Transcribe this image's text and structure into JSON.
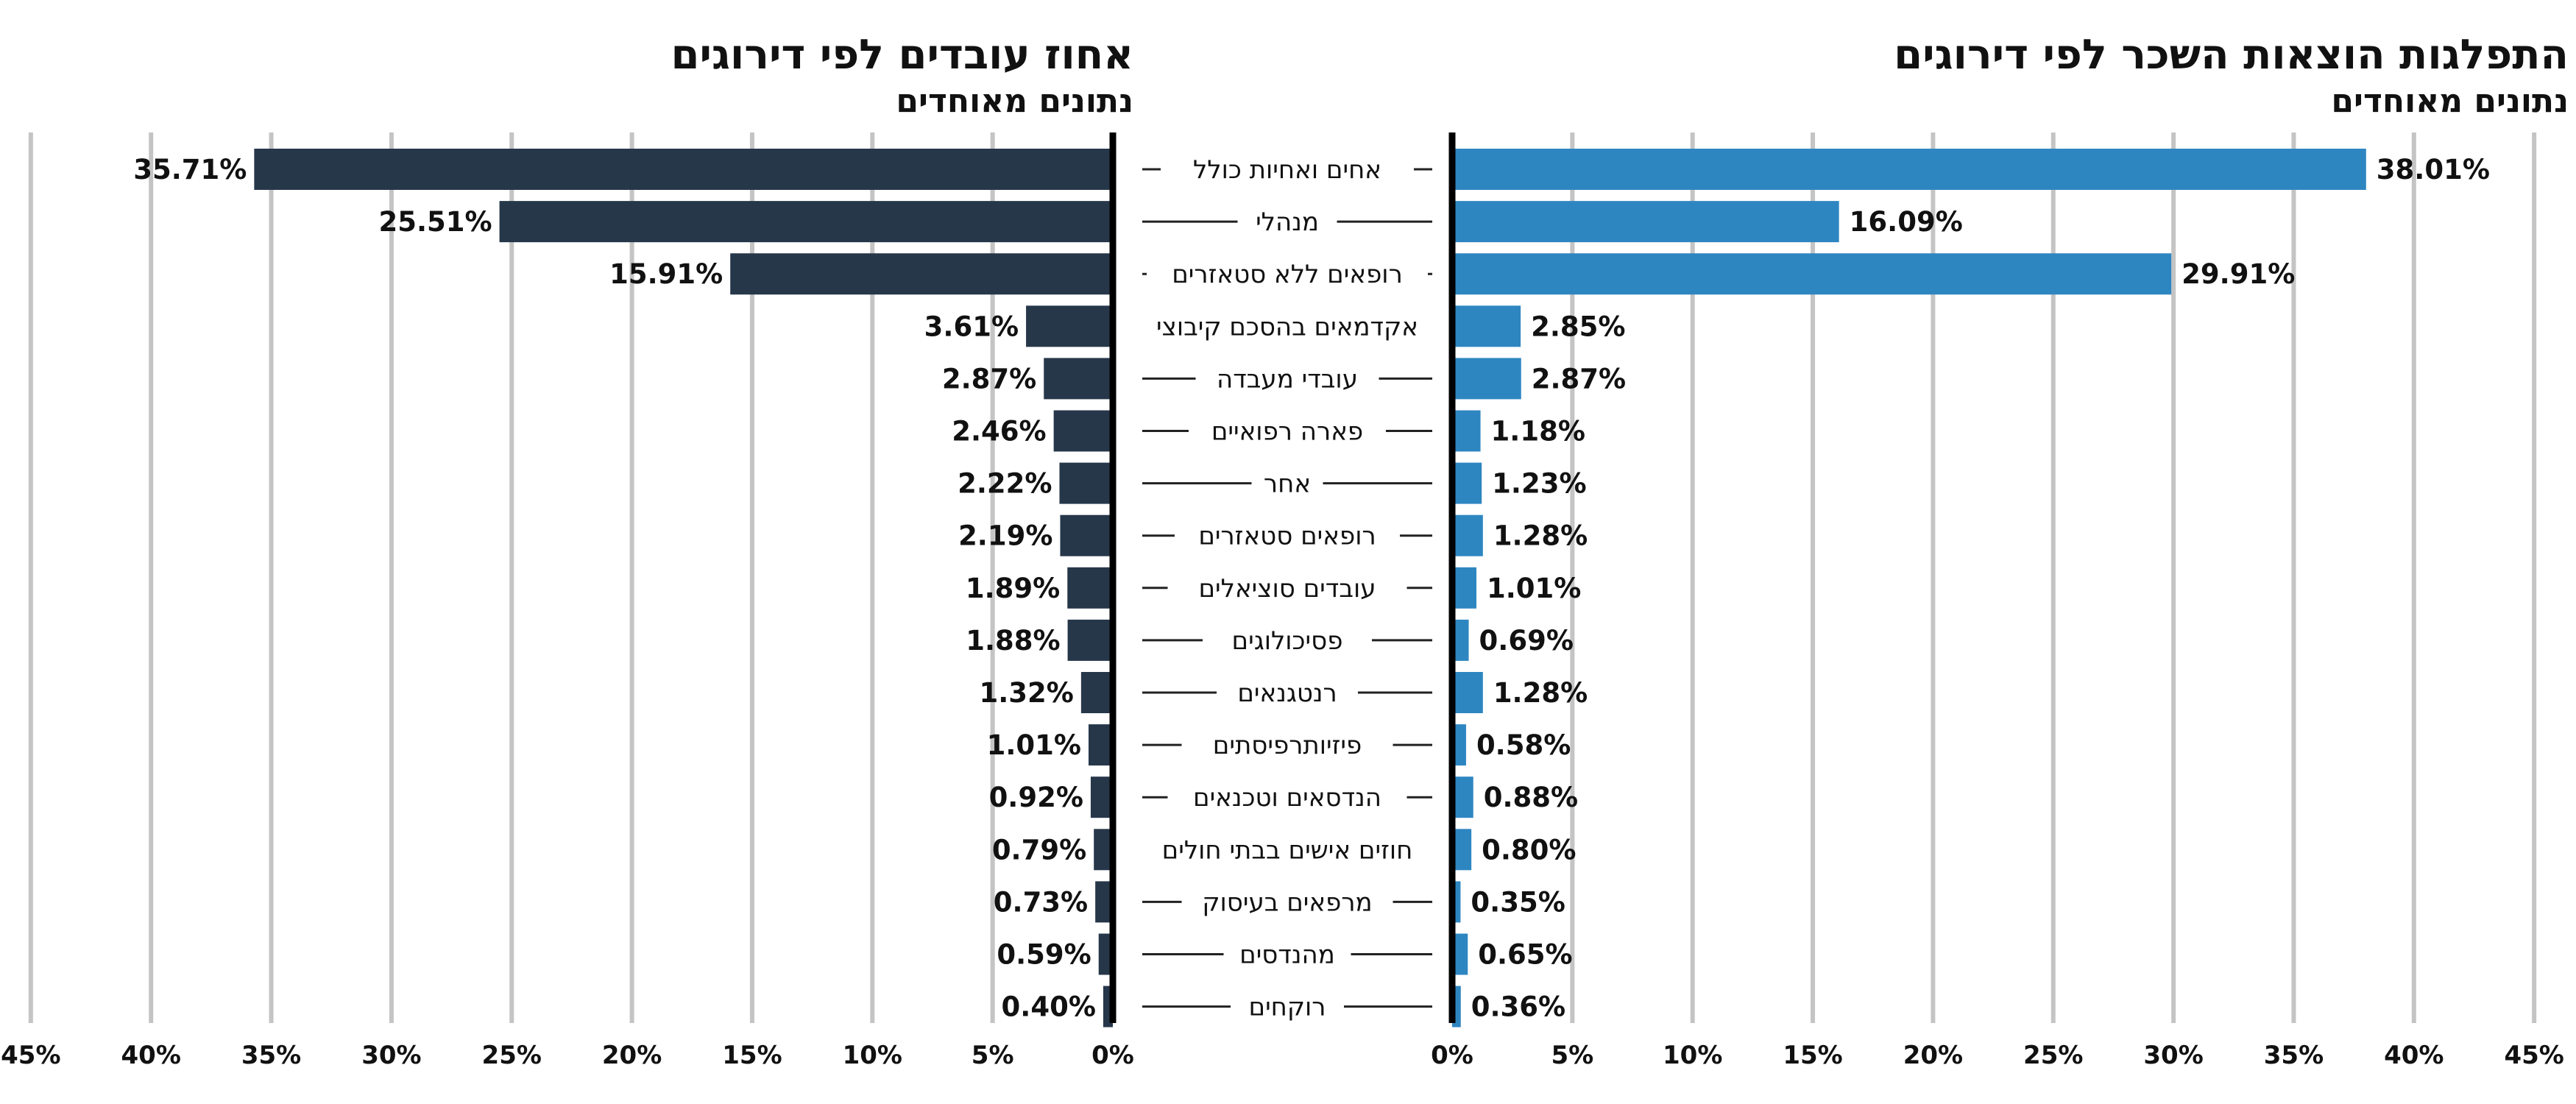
{
  "left_panel": {
    "title": "אחוז עובדים לפי דירוגים",
    "subtitle": "נתונים מאוחדים"
  },
  "right_panel": {
    "title": "התפלגות הוצאות השכר לפי דירוגים",
    "subtitle": "נתונים מאוחדים"
  },
  "colors": {
    "left_bar": "#27374a",
    "right_bar": "#2e86c1",
    "grid": "#c4c4c4",
    "axis": "#000000"
  },
  "chart_data": [
    {
      "type": "bar",
      "orientation": "horizontal",
      "direction": "right-to-left",
      "title": "אחוז עובדים לפי דירוגים",
      "subtitle": "נתונים מאוחדים",
      "categories": [
        "אחים ואחיות כולל",
        "מנהלי",
        "רופאים ללא סטאזרים",
        "אקדמאים בהסכם קיבוצי",
        "עובדי מעבדה",
        "פארה רפואיים",
        "אחר",
        "רופאים סטאזרים",
        "עובדים סוציאלים",
        "פסיכולוגים",
        "רנטגנאים",
        "פיזיותרפיסתים",
        "הנדסאים וטכנאים",
        "חוזים אישים בבתי חולים",
        "מרפאים בעיסוק",
        "מהנדסים",
        "רוקחים"
      ],
      "values": [
        35.71,
        25.51,
        15.91,
        3.61,
        2.87,
        2.46,
        2.22,
        2.19,
        1.89,
        1.88,
        1.32,
        1.01,
        0.92,
        0.79,
        0.73,
        0.59,
        0.4
      ],
      "value_labels": [
        "35.71%",
        "25.51%",
        "15.91%",
        "3.61%",
        "2.87%",
        "2.46%",
        "2.22%",
        "2.19%",
        "1.89%",
        "1.88%",
        "1.32%",
        "1.01%",
        "0.92%",
        "0.79%",
        "0.73%",
        "0.59%",
        "0.40%"
      ],
      "xlim": [
        0,
        45
      ],
      "ticks": [
        0,
        5,
        10,
        15,
        20,
        25,
        30,
        35,
        40,
        45
      ],
      "tick_labels": [
        "0%",
        "5%",
        "10%",
        "15%",
        "20%",
        "25%",
        "30%",
        "35%",
        "40%",
        "45%"
      ],
      "grid": true
    },
    {
      "type": "bar",
      "orientation": "horizontal",
      "direction": "left-to-right",
      "title": "התפלגות הוצאות השכר לפי דירוגים",
      "subtitle": "נתונים מאוחדים",
      "categories": [
        "אחים ואחיות כולל",
        "מנהלי",
        "רופאים ללא סטאזרים",
        "אקדמאים בהסכם קיבוצי",
        "עובדי מעבדה",
        "פארה רפואיים",
        "אחר",
        "רופאים סטאזרים",
        "עובדים סוציאלים",
        "פסיכולוגים",
        "רנטגנאים",
        "פיזיותרפיסתים",
        "הנדסאים וטכנאים",
        "חוזים אישים בבתי חולים",
        "מרפאים בעיסוק",
        "מהנדסים",
        "רוקחים"
      ],
      "values": [
        38.01,
        16.09,
        29.91,
        2.85,
        2.87,
        1.18,
        1.23,
        1.28,
        1.01,
        0.69,
        1.28,
        0.58,
        0.88,
        0.8,
        0.35,
        0.65,
        0.36
      ],
      "value_labels": [
        "38.01%",
        "16.09%",
        "29.91%",
        "2.85%",
        "2.87%",
        "1.18%",
        "1.23%",
        "1.28%",
        "1.01%",
        "0.69%",
        "1.28%",
        "0.58%",
        "0.88%",
        "0.80%",
        "0.35%",
        "0.65%",
        "0.36%"
      ],
      "xlim": [
        0,
        45
      ],
      "ticks": [
        0,
        5,
        10,
        15,
        20,
        25,
        30,
        35,
        40,
        45
      ],
      "tick_labels": [
        "0%",
        "5%",
        "10%",
        "15%",
        "20%",
        "25%",
        "30%",
        "35%",
        "40%",
        "45%"
      ],
      "grid": true
    }
  ]
}
